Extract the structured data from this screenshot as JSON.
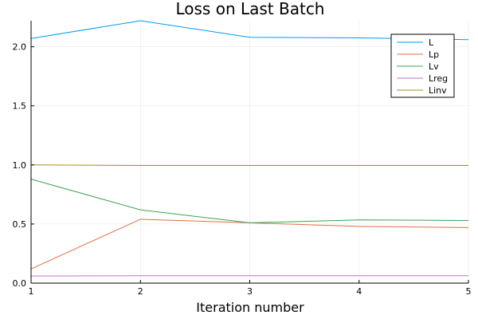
{
  "chart_data": {
    "type": "line",
    "title": "Loss on Last Batch",
    "xlabel": "Iteration number",
    "ylabel": "",
    "x": [
      1,
      2,
      3,
      4,
      5
    ],
    "xlim": [
      1,
      5
    ],
    "ylim": [
      0,
      2.22
    ],
    "xticks": [
      "1",
      "2",
      "3",
      "4",
      "5"
    ],
    "yticks": [
      "0.0",
      "0.5",
      "1.0",
      "1.5",
      "2.0"
    ],
    "grid": true,
    "legend_position": "top-right",
    "series": [
      {
        "name": "L",
        "color": "#009AFA",
        "values": [
          2.07,
          2.22,
          2.08,
          2.075,
          2.06
        ]
      },
      {
        "name": "Lp",
        "color": "#E26F46",
        "values": [
          0.12,
          0.54,
          0.51,
          0.48,
          0.47
        ]
      },
      {
        "name": "Lv",
        "color": "#3DA44D",
        "values": [
          0.88,
          0.62,
          0.51,
          0.535,
          0.53
        ]
      },
      {
        "name": "Lreg",
        "color": "#C271D2",
        "values": [
          0.06,
          0.062,
          0.062,
          0.062,
          0.062
        ]
      },
      {
        "name": "Linv",
        "color": "#AC8E18",
        "values": [
          1.0,
          0.995,
          0.995,
          0.995,
          0.995
        ]
      }
    ]
  }
}
